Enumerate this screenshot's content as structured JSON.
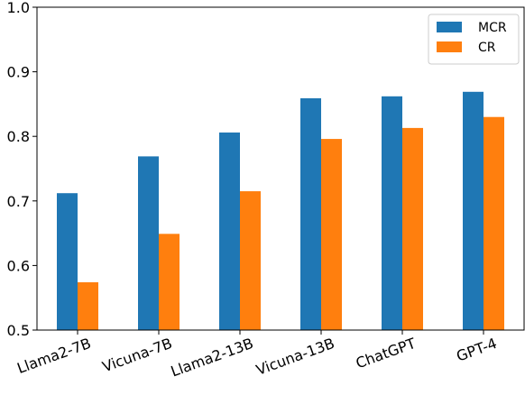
{
  "chart_data": {
    "type": "bar",
    "categories": [
      "Llama2-7B",
      "Vicuna-7B",
      "Llama2-13B",
      "Vicuna-13B",
      "ChatGPT",
      "GPT-4"
    ],
    "series": [
      {
        "name": "MCR",
        "color": "#1f77b4",
        "values": [
          0.712,
          0.769,
          0.806,
          0.859,
          0.862,
          0.869
        ]
      },
      {
        "name": "CR",
        "color": "#ff7f0e",
        "values": [
          0.574,
          0.649,
          0.715,
          0.796,
          0.813,
          0.83
        ]
      }
    ],
    "yticks": [
      "0.5",
      "0.6",
      "0.7",
      "0.8",
      "0.9",
      "1.0"
    ],
    "ylim": [
      0.5,
      1.0
    ],
    "grid": false,
    "legend": "top-right"
  }
}
